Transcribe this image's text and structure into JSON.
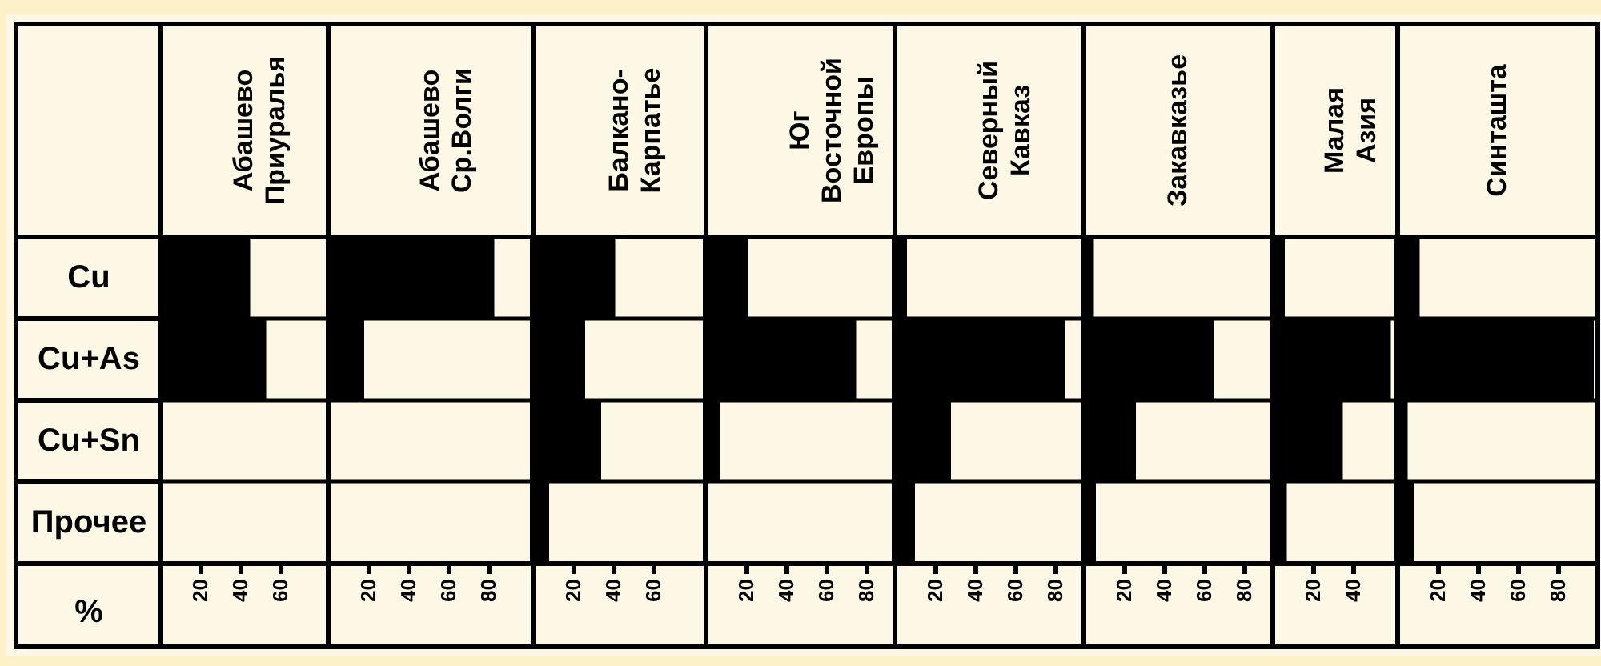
{
  "chart_data": [
    {
      "type": "bar",
      "orientation": "horizontal",
      "title": "Абашево Приуралья",
      "xlabel": "%",
      "categories": [
        "Cu",
        "Cu+As",
        "Cu+Sn",
        "Прочее"
      ],
      "values": [
        45,
        53,
        0,
        0
      ],
      "color": "#000000",
      "xlim": [
        0,
        84
      ],
      "xticks": [
        20,
        40,
        60
      ],
      "grid": "y"
    },
    {
      "type": "bar",
      "orientation": "horizontal",
      "title": "Абашево Ср.Волги",
      "values": [
        83,
        18,
        0,
        0
      ],
      "color": "#000000",
      "xlim": [
        0,
        102
      ],
      "xticks": [
        20,
        40,
        60,
        80
      ],
      "grid": "y",
      "tick_labels": "x"
    },
    {
      "type": "bar",
      "orientation": "horizontal",
      "title": "Балкано-Карпатье",
      "values": [
        41,
        26,
        34,
        8
      ],
      "color": "#000000",
      "xlim": [
        0,
        86
      ],
      "xticks": [
        20,
        40,
        60
      ],
      "grid": "y",
      "tick_labels": "x"
    },
    {
      "type": "bar",
      "orientation": "horizontal",
      "title": "Юг Восточной Европы",
      "values": [
        21,
        75,
        7,
        0
      ],
      "color": "#000000",
      "xlim": [
        0,
        94
      ],
      "xticks": [
        20,
        40,
        60,
        80
      ],
      "grid": "y",
      "tick_labels": "x"
    },
    {
      "type": "bar",
      "orientation": "horizontal",
      "title": "Северный Кавказ",
      "values": [
        6,
        85,
        28,
        10
      ],
      "color": "#000000",
      "xlim": [
        0,
        94
      ],
      "xticks": [
        20,
        40,
        60,
        80
      ],
      "grid": "y",
      "tick_labels": "x"
    },
    {
      "type": "bar",
      "orientation": "horizontal",
      "title": "Закавказье",
      "values": [
        5,
        65,
        26,
        6
      ],
      "color": "#000000",
      "xlim": [
        0,
        94
      ],
      "xticks": [
        20,
        40,
        60,
        80
      ],
      "grid": "y",
      "tick_labels": "x"
    },
    {
      "type": "bar",
      "orientation": "horizontal",
      "title": "Малая Азия",
      "values": [
        6,
        59,
        35,
        7
      ],
      "color": "#000000",
      "xlim": [
        0,
        62
      ],
      "xticks": [
        20,
        40
      ],
      "grid": "y",
      "tick_labels": "x"
    },
    {
      "type": "bar",
      "orientation": "horizontal",
      "title": "Синташта",
      "values": [
        11,
        98,
        5,
        8
      ],
      "color": "#000000",
      "xlim": [
        0,
        100
      ],
      "xticks": [
        20,
        40,
        60,
        80
      ],
      "grid": "y",
      "tick_labels": "x"
    }
  ]
}
